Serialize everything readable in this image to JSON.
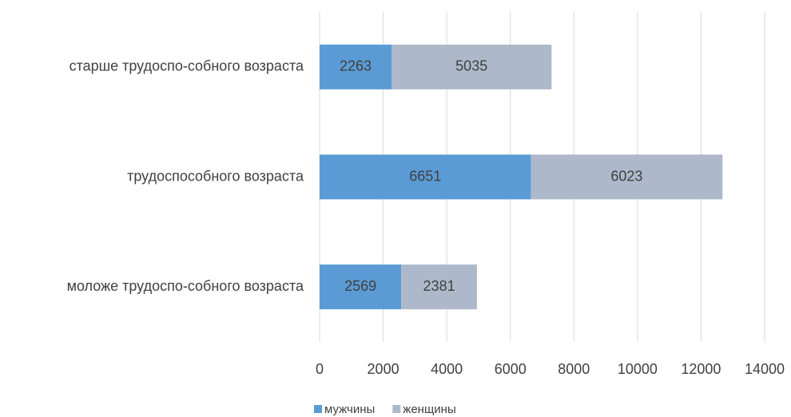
{
  "chart_data": {
    "type": "stacked_bar_horizontal",
    "categories": [
      "старше трудоспо-собного возраста",
      "трудоспособного возраста",
      "моложе трудоспо-собного возраста"
    ],
    "series": [
      {
        "name": "мужчины",
        "color": "#5b9bd5",
        "values": [
          2263,
          6651,
          2569
        ]
      },
      {
        "name": "женщины",
        "color": "#adb9ca",
        "values": [
          5035,
          6023,
          2381
        ]
      }
    ],
    "xlim": [
      0,
      14000
    ],
    "xticks": [
      0,
      2000,
      4000,
      6000,
      8000,
      10000,
      12000,
      14000
    ],
    "grid": true,
    "legend": "bottom"
  }
}
